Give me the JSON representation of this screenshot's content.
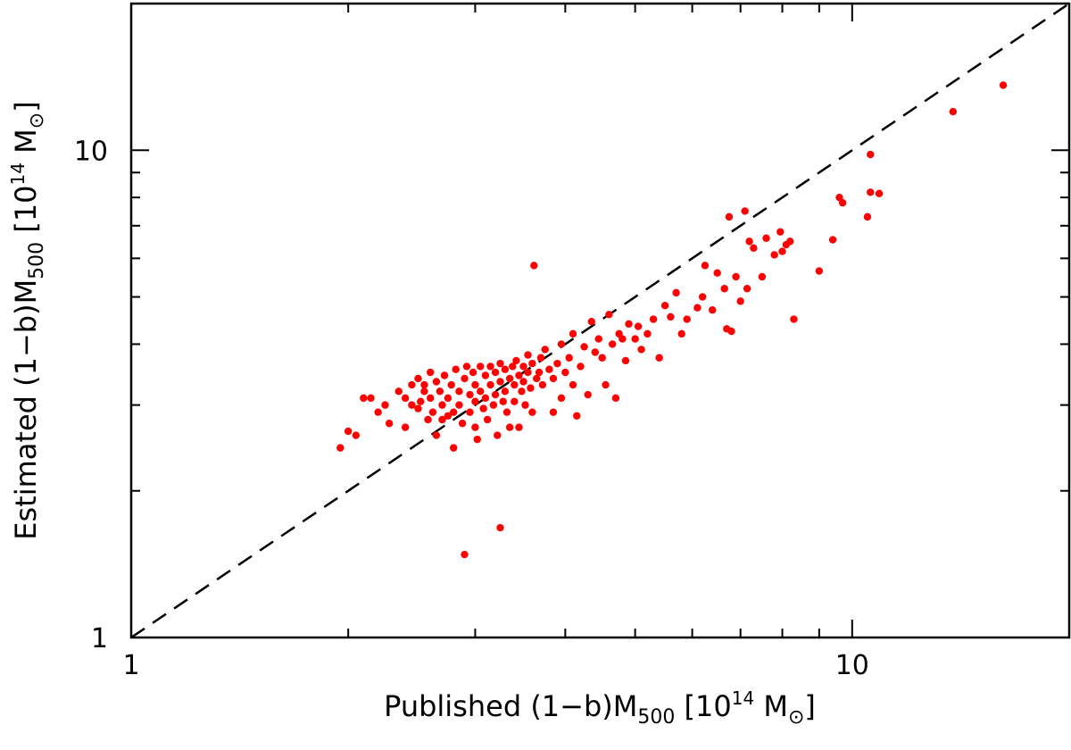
{
  "chart_data": {
    "type": "scatter",
    "xscale": "log",
    "yscale": "log",
    "xlim": [
      1,
      20
    ],
    "ylim": [
      1,
      20
    ],
    "xlabel": "Published (1−b)M500 [10^14 M⊙]",
    "ylabel": "Estimated (1−b)M500 [10^14 M⊙]",
    "x_ticks": [
      {
        "value": 1,
        "label": "1"
      },
      {
        "value": 10,
        "label": "10"
      }
    ],
    "y_ticks": [
      {
        "value": 1,
        "label": "1"
      },
      {
        "value": 10,
        "label": "10"
      }
    ],
    "grid": false,
    "reference_line": {
      "style": "dashed",
      "color": "#000000",
      "relation": "y = x"
    },
    "marker_color": "#ff0000",
    "series": [
      {
        "points": [
          [
            1.95,
            2.45
          ],
          [
            2.0,
            2.65
          ],
          [
            2.05,
            2.6
          ],
          [
            2.1,
            3.1
          ],
          [
            2.15,
            3.1
          ],
          [
            2.2,
            2.9
          ],
          [
            2.25,
            3.0
          ],
          [
            2.28,
            2.75
          ],
          [
            2.35,
            3.2
          ],
          [
            2.4,
            3.1
          ],
          [
            2.4,
            2.7
          ],
          [
            2.45,
            3.3
          ],
          [
            2.45,
            3.0
          ],
          [
            2.5,
            3.4
          ],
          [
            2.5,
            2.95
          ],
          [
            2.52,
            3.05
          ],
          [
            2.55,
            3.3
          ],
          [
            2.55,
            3.2
          ],
          [
            2.58,
            2.8
          ],
          [
            2.6,
            3.5
          ],
          [
            2.6,
            3.1
          ],
          [
            2.62,
            2.9
          ],
          [
            2.65,
            3.35
          ],
          [
            2.65,
            2.6
          ],
          [
            2.68,
            3.2
          ],
          [
            2.7,
            3.0
          ],
          [
            2.7,
            2.8
          ],
          [
            2.72,
            3.45
          ],
          [
            2.75,
            3.1
          ],
          [
            2.75,
            2.85
          ],
          [
            2.78,
            3.3
          ],
          [
            2.8,
            2.9
          ],
          [
            2.8,
            2.45
          ],
          [
            2.82,
            3.55
          ],
          [
            2.85,
            3.2
          ],
          [
            2.85,
            3.0
          ],
          [
            2.88,
            2.75
          ],
          [
            2.9,
            3.4
          ],
          [
            2.9,
            1.48
          ],
          [
            2.92,
            3.6
          ],
          [
            2.95,
            3.15
          ],
          [
            2.95,
            2.9
          ],
          [
            2.98,
            3.5
          ],
          [
            3.0,
            3.3
          ],
          [
            3.0,
            3.05
          ],
          [
            3.0,
            2.7
          ],
          [
            3.02,
            2.55
          ],
          [
            3.05,
            3.6
          ],
          [
            3.05,
            3.2
          ],
          [
            3.08,
            2.95
          ],
          [
            3.1,
            3.45
          ],
          [
            3.1,
            3.1
          ],
          [
            3.12,
            2.8
          ],
          [
            3.15,
            3.6
          ],
          [
            3.15,
            3.3
          ],
          [
            3.18,
            3.0
          ],
          [
            3.2,
            3.5
          ],
          [
            3.2,
            3.15
          ],
          [
            3.22,
            2.6
          ],
          [
            3.25,
            3.65
          ],
          [
            3.25,
            3.35
          ],
          [
            3.25,
            1.68
          ],
          [
            3.28,
            3.05
          ],
          [
            3.3,
            3.55
          ],
          [
            3.3,
            3.2
          ],
          [
            3.32,
            2.9
          ],
          [
            3.35,
            3.4
          ],
          [
            3.35,
            2.7
          ],
          [
            3.38,
            3.6
          ],
          [
            3.4,
            3.3
          ],
          [
            3.4,
            3.05
          ],
          [
            3.42,
            3.7
          ],
          [
            3.45,
            3.45
          ],
          [
            3.45,
            2.7
          ],
          [
            3.48,
            3.2
          ],
          [
            3.5,
            3.6
          ],
          [
            3.5,
            3.35
          ],
          [
            3.52,
            3.0
          ],
          [
            3.55,
            3.8
          ],
          [
            3.55,
            3.5
          ],
          [
            3.58,
            3.25
          ],
          [
            3.6,
            3.65
          ],
          [
            3.6,
            2.9
          ],
          [
            3.62,
            5.8
          ],
          [
            3.65,
            3.4
          ],
          [
            3.68,
            3.5
          ],
          [
            3.7,
            3.75
          ],
          [
            3.72,
            3.3
          ],
          [
            3.75,
            3.9
          ],
          [
            3.8,
            3.55
          ],
          [
            3.85,
            3.4
          ],
          [
            3.85,
            2.9
          ],
          [
            3.9,
            3.65
          ],
          [
            3.95,
            4.0
          ],
          [
            3.95,
            3.1
          ],
          [
            4.0,
            3.5
          ],
          [
            4.05,
            3.75
          ],
          [
            4.1,
            4.2
          ],
          [
            4.1,
            3.3
          ],
          [
            4.15,
            2.85
          ],
          [
            4.2,
            3.6
          ],
          [
            4.25,
            3.95
          ],
          [
            4.3,
            3.15
          ],
          [
            4.35,
            4.45
          ],
          [
            4.4,
            3.85
          ],
          [
            4.45,
            4.1
          ],
          [
            4.5,
            3.75
          ],
          [
            4.55,
            3.3
          ],
          [
            4.6,
            4.6
          ],
          [
            4.65,
            4.0
          ],
          [
            4.7,
            3.1
          ],
          [
            4.75,
            4.2
          ],
          [
            4.8,
            4.1
          ],
          [
            4.85,
            3.7
          ],
          [
            4.9,
            4.4
          ],
          [
            5.0,
            4.1
          ],
          [
            5.05,
            4.35
          ],
          [
            5.1,
            3.9
          ],
          [
            5.2,
            4.2
          ],
          [
            5.3,
            4.5
          ],
          [
            5.4,
            3.75
          ],
          [
            5.5,
            4.8
          ],
          [
            5.6,
            4.55
          ],
          [
            5.7,
            5.1
          ],
          [
            5.8,
            4.2
          ],
          [
            5.9,
            4.5
          ],
          [
            6.1,
            4.75
          ],
          [
            6.2,
            5.0
          ],
          [
            6.25,
            5.8
          ],
          [
            6.4,
            4.7
          ],
          [
            6.5,
            5.6
          ],
          [
            6.65,
            5.2
          ],
          [
            6.7,
            4.3
          ],
          [
            6.75,
            7.3
          ],
          [
            6.8,
            4.25
          ],
          [
            6.9,
            5.5
          ],
          [
            7.0,
            4.9
          ],
          [
            7.1,
            7.5
          ],
          [
            7.15,
            5.2
          ],
          [
            7.2,
            6.5
          ],
          [
            7.3,
            6.3
          ],
          [
            7.5,
            5.5
          ],
          [
            7.6,
            6.6
          ],
          [
            7.8,
            6.1
          ],
          [
            7.95,
            6.8
          ],
          [
            8.0,
            6.2
          ],
          [
            8.1,
            6.4
          ],
          [
            8.2,
            6.5
          ],
          [
            8.3,
            4.5
          ],
          [
            9.0,
            5.65
          ],
          [
            9.4,
            6.55
          ],
          [
            9.6,
            8.0
          ],
          [
            9.7,
            7.8
          ],
          [
            10.5,
            7.3
          ],
          [
            10.6,
            8.2
          ],
          [
            10.6,
            9.8
          ],
          [
            10.9,
            8.15
          ],
          [
            13.8,
            12.0
          ],
          [
            16.2,
            13.6
          ]
        ]
      }
    ]
  }
}
